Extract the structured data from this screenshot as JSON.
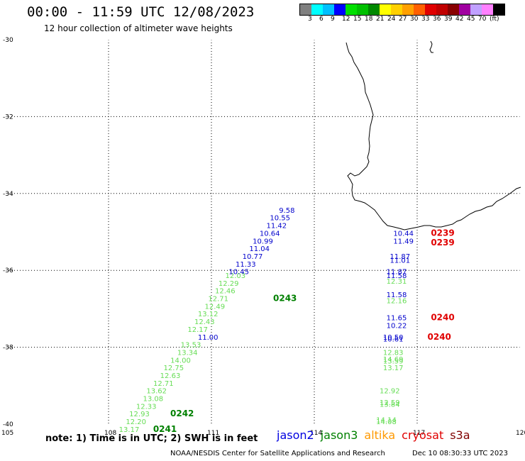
{
  "header": {
    "title": "00:00 - 11:59 UTC 12/08/2023",
    "subtitle": "12 hour collection of altimeter wave heights"
  },
  "colorbar": {
    "colors": [
      "#808080",
      "#00ffff",
      "#00c0ff",
      "#0000ff",
      "#00e000",
      "#00c000",
      "#008800",
      "#ffff00",
      "#ffd000",
      "#ffa000",
      "#ff6000",
      "#e00000",
      "#c00000",
      "#880000",
      "#a000a0",
      "#c0a0ff",
      "#ff80ff",
      "#000000"
    ],
    "ticks": [
      "3",
      "6",
      "9",
      "12",
      "15",
      "18",
      "21",
      "24",
      "27",
      "30",
      "33",
      "36",
      "39",
      "42",
      "45",
      "70",
      "(ft)"
    ]
  },
  "map": {
    "lat_ticks": [
      "-30",
      "-32",
      "-34",
      "-36",
      "-38",
      "-40"
    ],
    "lon_ticks": [
      "105",
      "108",
      "111",
      "114",
      "117",
      "120"
    ],
    "lat_range": [
      -40,
      -30
    ],
    "lon_range": [
      105,
      120
    ],
    "jason2_points": [
      {
        "lon": 113.2,
        "lat": -34.5,
        "v": "9.58"
      },
      {
        "lon": 113.0,
        "lat": -34.7,
        "v": "10.55"
      },
      {
        "lon": 112.9,
        "lat": -34.9,
        "v": "11.42"
      },
      {
        "lon": 112.7,
        "lat": -35.1,
        "v": "10.64"
      },
      {
        "lon": 112.5,
        "lat": -35.3,
        "v": "10.99"
      },
      {
        "lon": 112.4,
        "lat": -35.5,
        "v": "11.04"
      },
      {
        "lon": 112.2,
        "lat": -35.7,
        "v": "10.77"
      },
      {
        "lon": 112.0,
        "lat": -35.9,
        "v": "11.33"
      },
      {
        "lon": 111.8,
        "lat": -36.1,
        "v": "10.45"
      },
      {
        "lon": 110.9,
        "lat": -37.8,
        "v": "11.00"
      },
      {
        "lon": 116.6,
        "lat": -35.1,
        "v": "10.44"
      },
      {
        "lon": 116.6,
        "lat": -35.3,
        "v": "11.49"
      },
      {
        "lon": 116.5,
        "lat": -35.7,
        "v": "11.87"
      },
      {
        "lon": 116.5,
        "lat": -35.8,
        "v": "11.01"
      },
      {
        "lon": 116.4,
        "lat": -36.1,
        "v": "11.87"
      },
      {
        "lon": 116.4,
        "lat": -36.2,
        "v": "11.58"
      },
      {
        "lon": 116.4,
        "lat": -36.7,
        "v": "11.58"
      },
      {
        "lon": 116.4,
        "lat": -37.3,
        "v": "11.65"
      },
      {
        "lon": 116.4,
        "lat": -37.5,
        "v": "10.22"
      },
      {
        "lon": 116.3,
        "lat": -37.8,
        "v": "10.50"
      },
      {
        "lon": 116.3,
        "lat": -37.85,
        "v": "10.61"
      }
    ],
    "jason3_points": [
      {
        "lon": 111.7,
        "lat": -36.2,
        "v": "12.03"
      },
      {
        "lon": 111.5,
        "lat": -36.4,
        "v": "12.29"
      },
      {
        "lon": 111.4,
        "lat": -36.6,
        "v": "12.46"
      },
      {
        "lon": 111.2,
        "lat": -36.8,
        "v": "12.71"
      },
      {
        "lon": 111.1,
        "lat": -37.0,
        "v": "12.49"
      },
      {
        "lon": 110.9,
        "lat": -37.2,
        "v": "13.12"
      },
      {
        "lon": 110.8,
        "lat": -37.4,
        "v": "12.43"
      },
      {
        "lon": 110.6,
        "lat": -37.6,
        "v": "12.17"
      },
      {
        "lon": 110.4,
        "lat": -38.0,
        "v": "13.53"
      },
      {
        "lon": 110.3,
        "lat": -38.2,
        "v": "13.34"
      },
      {
        "lon": 110.1,
        "lat": -38.4,
        "v": "14.00"
      },
      {
        "lon": 109.9,
        "lat": -38.6,
        "v": "12.75"
      },
      {
        "lon": 109.8,
        "lat": -38.8,
        "v": "12.63"
      },
      {
        "lon": 109.6,
        "lat": -39.0,
        "v": "12.71"
      },
      {
        "lon": 109.4,
        "lat": -39.2,
        "v": "13.62"
      },
      {
        "lon": 109.3,
        "lat": -39.4,
        "v": "13.08"
      },
      {
        "lon": 109.1,
        "lat": -39.6,
        "v": "12.33"
      },
      {
        "lon": 108.9,
        "lat": -39.8,
        "v": "12.93"
      },
      {
        "lon": 108.8,
        "lat": -40.0,
        "v": "12.20"
      },
      {
        "lon": 108.6,
        "lat": -40.2,
        "v": "13.17"
      },
      {
        "lon": 116.4,
        "lat": -36.35,
        "v": "12.31"
      },
      {
        "lon": 116.4,
        "lat": -36.85,
        "v": "12.16"
      },
      {
        "lon": 116.3,
        "lat": -38.2,
        "v": "12.83"
      },
      {
        "lon": 116.3,
        "lat": -38.38,
        "v": "14.69"
      },
      {
        "lon": 116.3,
        "lat": -38.42,
        "v": "13.59"
      },
      {
        "lon": 116.3,
        "lat": -38.6,
        "v": "13.17"
      },
      {
        "lon": 116.2,
        "lat": -39.2,
        "v": "12.92"
      },
      {
        "lon": 116.2,
        "lat": -39.5,
        "v": "12.59"
      },
      {
        "lon": 116.2,
        "lat": -39.55,
        "v": "13.84"
      },
      {
        "lon": 116.1,
        "lat": -39.95,
        "v": "14.14"
      },
      {
        "lon": 116.1,
        "lat": -40.0,
        "v": "14.08"
      }
    ],
    "pass_labels": [
      {
        "text": "0243",
        "color": "#008000",
        "lon": 112.8,
        "lat": -36.8
      },
      {
        "text": "0242",
        "color": "#008000",
        "lon": 109.8,
        "lat": -39.8
      },
      {
        "text": "0241",
        "color": "#008000",
        "lon": 109.3,
        "lat": -40.2
      },
      {
        "text": "0239",
        "color": "#e00000",
        "lon": 117.4,
        "lat": -35.1
      },
      {
        "text": "0239",
        "color": "#e00000",
        "lon": 117.4,
        "lat": -35.35
      },
      {
        "text": "0240",
        "color": "#e00000",
        "lon": 117.4,
        "lat": -37.3
      },
      {
        "text": "0240",
        "color": "#e00000",
        "lon": 117.3,
        "lat": -37.8
      }
    ]
  },
  "note": "note: 1) Time is in UTC; 2) SWH is in feet",
  "legend": [
    {
      "name": "jason2",
      "color": "#0000e0"
    },
    {
      "name": "jason3",
      "color": "#008000"
    },
    {
      "name": "altika",
      "color": "#ff9900"
    },
    {
      "name": "cryosat",
      "color": "#e00000"
    },
    {
      "name": "s3a",
      "color": "#800000"
    }
  ],
  "footer": {
    "left": "NOAA/NESDIS Center for Satellite Applications and Research",
    "right": "Dec 10 08:30:33 UTC 2023"
  }
}
